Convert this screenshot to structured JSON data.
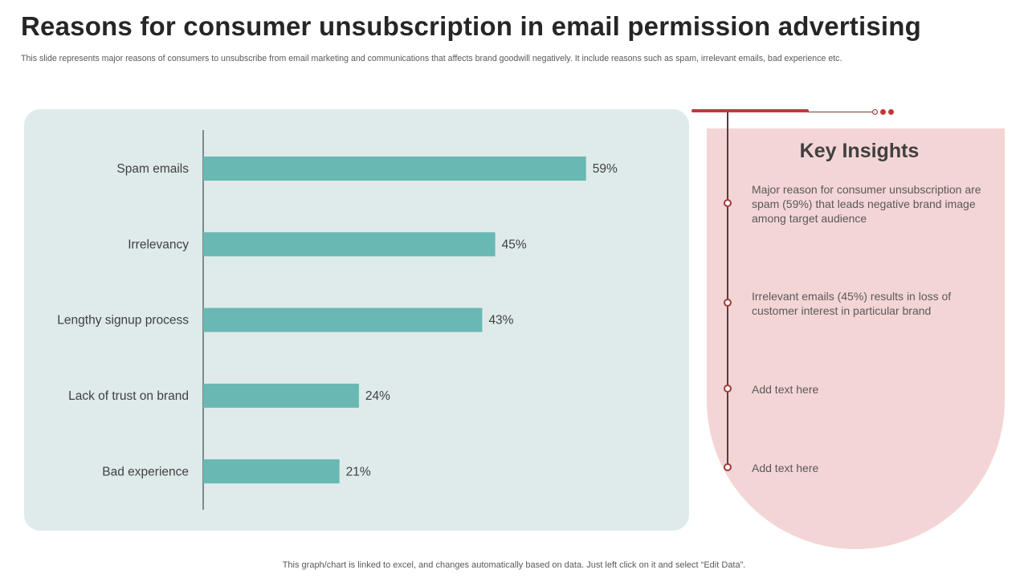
{
  "title": "Reasons for consumer unsubscription in email permission advertising",
  "subtitle": "This slide represents major reasons of consumers to unsubscribe from email marketing and communications that affects brand goodwill negatively. It include reasons such as spam, irrelevant emails, bad experience etc.",
  "chart_data": {
    "type": "bar",
    "orientation": "horizontal",
    "title": "",
    "xlabel": "",
    "ylabel": "",
    "categories": [
      "Spam emails",
      "Irrelevancy",
      "Lengthy signup process",
      "Lack of trust on brand",
      "Bad experience"
    ],
    "values": [
      59,
      45,
      43,
      24,
      21
    ],
    "value_labels": [
      "59%",
      "45%",
      "43%",
      "24%",
      "21%"
    ],
    "unit": "%",
    "xlim": [
      0,
      100
    ],
    "grid": false,
    "bar_color": "#6ab8b4"
  },
  "insights": {
    "title": "Key Insights",
    "items": [
      "Major reason for consumer unsubscription are spam (59%) that leads negative brand image among target audience",
      "Irrelevant emails (45%)  results in loss of customer interest in particular brand",
      "Add text here",
      "Add text here"
    ]
  },
  "footer": "This graph/chart is linked to excel,  and changes automatically based on data. Just left click on it and select “Edit Data”.",
  "colors": {
    "accent_red": "#c0393b",
    "panel_teal": "#deebea",
    "panel_pink": "#f4d5d5",
    "bar_teal": "#6ab8b4"
  }
}
